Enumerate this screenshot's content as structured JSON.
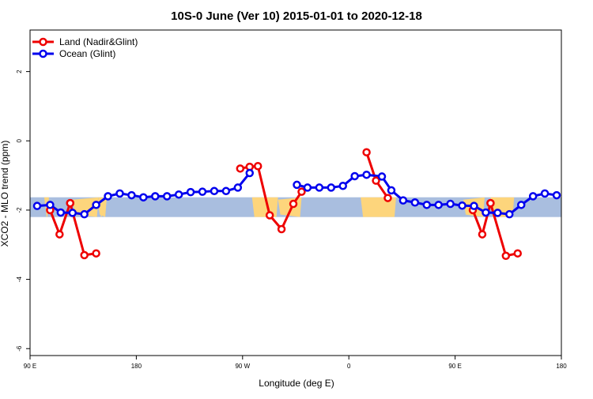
{
  "chart_data": {
    "type": "line",
    "title": "10S-0 June (Ver 10)   2015-01-01 to 2020-12-18",
    "xlabel": "Longitude (deg E)",
    "ylabel": "XCO2 - MLO trend (ppm)",
    "xlim": [
      90,
      540
    ],
    "ylim": [
      -6.2,
      3.2
    ],
    "x_ticks": [
      {
        "value": 90,
        "label": "90 E"
      },
      {
        "value": 180,
        "label": "180"
      },
      {
        "value": 270,
        "label": "90 W"
      },
      {
        "value": 360,
        "label": "0"
      },
      {
        "value": 450,
        "label": "90 E"
      },
      {
        "value": 540,
        "label": "180"
      }
    ],
    "y_ticks": [
      {
        "value": 2,
        "label": "2"
      },
      {
        "value": 0,
        "label": "0"
      },
      {
        "value": -2,
        "label": "-2"
      },
      {
        "value": -4,
        "label": "-4"
      },
      {
        "value": -6,
        "label": "-6"
      }
    ],
    "map_band": {
      "y_range": [
        -2.2,
        -1.63
      ],
      "ocean_color": "#a9bedf",
      "land_color": "#fdd57c",
      "land_segments": [
        [
          102,
          106
        ],
        [
          126,
          148
        ],
        [
          148,
          152
        ],
        [
          147,
          155
        ],
        [
          278,
          300
        ],
        [
          300,
          320
        ],
        [
          370,
          400
        ],
        [
          457,
          475
        ],
        [
          480,
          500
        ]
      ]
    },
    "series": [
      {
        "name": "Land (Nadir&Glint)",
        "color": "#ee0000",
        "segments": [
          [
            [
              107,
              -2.0
            ],
            [
              115,
              -2.7
            ],
            [
              124,
              -1.8
            ]
          ],
          [
            [
              124,
              -1.8
            ],
            [
              136,
              -3.3
            ],
            [
              146,
              -3.25
            ]
          ],
          [
            [
              268,
              -0.8
            ],
            [
              276,
              -0.75
            ],
            [
              283,
              -0.73
            ],
            [
              293,
              -2.15
            ],
            [
              303,
              -2.55
            ],
            [
              313,
              -1.82
            ],
            [
              320,
              -1.47
            ]
          ],
          [
            [
              375,
              -0.33
            ],
            [
              383,
              -1.15
            ],
            [
              393,
              -1.65
            ]
          ],
          [
            [
              465,
              -2.0
            ],
            [
              473,
              -2.7
            ],
            [
              480,
              -1.8
            ]
          ],
          [
            [
              480,
              -1.8
            ],
            [
              493,
              -3.32
            ],
            [
              503,
              -3.25
            ]
          ]
        ]
      },
      {
        "name": "Ocean (Glint)",
        "color": "#0000ee",
        "segments": [
          [
            [
              96,
              -1.88
            ],
            [
              107,
              -1.85
            ],
            [
              116,
              -2.07
            ],
            [
              126,
              -2.08
            ],
            [
              136,
              -2.12
            ],
            [
              146,
              -1.85
            ],
            [
              156,
              -1.6
            ],
            [
              166,
              -1.52
            ],
            [
              176,
              -1.57
            ],
            [
              186,
              -1.63
            ],
            [
              196,
              -1.6
            ],
            [
              206,
              -1.6
            ],
            [
              216,
              -1.55
            ],
            [
              226,
              -1.48
            ],
            [
              236,
              -1.47
            ],
            [
              246,
              -1.45
            ],
            [
              256,
              -1.45
            ],
            [
              266,
              -1.35
            ],
            [
              276,
              -0.93
            ]
          ],
          [
            [
              316,
              -1.27
            ],
            [
              325,
              -1.35
            ],
            [
              335,
              -1.35
            ],
            [
              345,
              -1.35
            ],
            [
              355,
              -1.3
            ],
            [
              365,
              -1.02
            ],
            [
              375,
              -0.98
            ],
            [
              388,
              -1.03
            ],
            [
              396,
              -1.43
            ],
            [
              406,
              -1.72
            ],
            [
              416,
              -1.78
            ],
            [
              426,
              -1.85
            ],
            [
              436,
              -1.85
            ],
            [
              446,
              -1.82
            ],
            [
              456,
              -1.87
            ],
            [
              466,
              -1.88
            ],
            [
              476,
              -2.07
            ],
            [
              486,
              -2.08
            ],
            [
              496,
              -2.12
            ],
            [
              506,
              -1.85
            ],
            [
              516,
              -1.6
            ],
            [
              526,
              -1.52
            ],
            [
              536,
              -1.57
            ]
          ]
        ]
      }
    ],
    "legend_position": "top-left"
  }
}
